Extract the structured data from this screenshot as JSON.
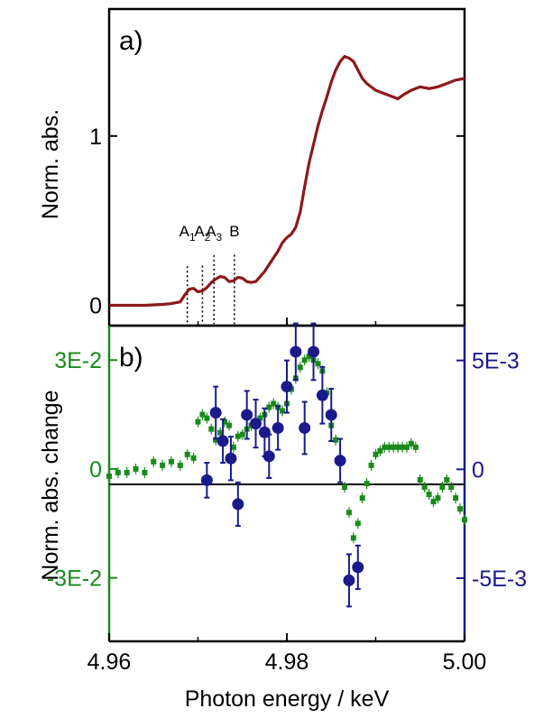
{
  "colors": {
    "xanes": "#8b1a1a",
    "green": "#1a8a1a",
    "blue": "#1a1a8a",
    "axis": "#000000"
  },
  "x_axis": {
    "label": "Photon energy / keV",
    "ticks": [
      "4.96",
      "4.98",
      "5.00"
    ],
    "range": [
      4.96,
      5.0
    ]
  },
  "chart_data": [
    {
      "panel": "a)",
      "type": "line",
      "ylabel": "Norm. abs.",
      "ylim": [
        -0.12,
        1.75
      ],
      "yticks": [
        {
          "value": 0,
          "label": "0"
        },
        {
          "value": 1,
          "label": "1"
        }
      ],
      "xlim": [
        4.96,
        5.0
      ],
      "peaks": [
        {
          "label": "A",
          "sub": "1",
          "x": 4.9688
        },
        {
          "label": "A",
          "sub": "2",
          "x": 4.9705
        },
        {
          "label": "A",
          "sub": "3",
          "x": 4.9718
        },
        {
          "label": "B",
          "sub": "",
          "x": 4.9741
        }
      ],
      "series": [
        {
          "color": "#8b1a1a",
          "x": [
            4.96,
            4.964,
            4.966,
            4.967,
            4.968,
            4.9685,
            4.969,
            4.9695,
            4.97,
            4.9705,
            4.971,
            4.9715,
            4.972,
            4.9725,
            4.973,
            4.9735,
            4.974,
            4.9745,
            4.975,
            4.9755,
            4.976,
            4.9765,
            4.977,
            4.9775,
            4.978,
            4.9785,
            4.979,
            4.9795,
            4.98,
            4.9805,
            4.981,
            4.9815,
            4.982,
            4.9825,
            4.983,
            4.9835,
            4.984,
            4.9845,
            4.985,
            4.9855,
            4.986,
            4.9865,
            4.987,
            4.9875,
            4.988,
            4.9885,
            4.989,
            4.99,
            4.991,
            4.992,
            4.9925,
            4.993,
            4.994,
            4.995,
            4.996,
            4.997,
            4.998,
            4.999,
            5.0
          ],
          "y": [
            0.0,
            0.0,
            0.005,
            0.01,
            0.02,
            0.06,
            0.095,
            0.1,
            0.08,
            0.085,
            0.105,
            0.135,
            0.155,
            0.17,
            0.165,
            0.14,
            0.145,
            0.165,
            0.16,
            0.14,
            0.135,
            0.14,
            0.17,
            0.2,
            0.24,
            0.28,
            0.32,
            0.37,
            0.4,
            0.42,
            0.46,
            0.55,
            0.7,
            0.84,
            0.95,
            1.06,
            1.15,
            1.23,
            1.32,
            1.39,
            1.44,
            1.47,
            1.46,
            1.44,
            1.39,
            1.34,
            1.31,
            1.27,
            1.25,
            1.23,
            1.22,
            1.24,
            1.27,
            1.29,
            1.28,
            1.29,
            1.31,
            1.33,
            1.34
          ]
        }
      ]
    },
    {
      "panel": "b)",
      "type": "scatter",
      "ylabel": "Norm. abs. change",
      "xlim": [
        4.96,
        5.0
      ],
      "ylim_left": [
        -0.0475,
        0.0395
      ],
      "yticks_left": [
        {
          "value": 0.03,
          "label": "3E-2"
        },
        {
          "value": 0,
          "label": "0"
        },
        {
          "value": -0.03,
          "label": "-3E-2"
        }
      ],
      "ylim_right": [
        -0.0079,
        0.0066
      ],
      "yticks_right": [
        {
          "value": 0.005,
          "label": "5E-3"
        },
        {
          "value": 0,
          "label": "0"
        },
        {
          "value": -0.005,
          "label": "-5E-3"
        }
      ],
      "series": [
        {
          "name": "",
          "color": "#1a8a1a",
          "axis": "left",
          "x": [
            4.96,
            4.961,
            4.962,
            4.963,
            4.964,
            4.965,
            4.966,
            4.967,
            4.968,
            4.9688,
            4.9695,
            4.97,
            4.9705,
            4.971,
            4.9715,
            4.972,
            4.9725,
            4.973,
            4.9735,
            4.974,
            4.9745,
            4.975,
            4.9755,
            4.976,
            4.9765,
            4.977,
            4.9775,
            4.978,
            4.9785,
            4.979,
            4.9795,
            4.98,
            4.9805,
            4.981,
            4.9815,
            4.982,
            4.9825,
            4.983,
            4.9835,
            4.984,
            4.9845,
            4.985,
            4.9855,
            4.986,
            4.9865,
            4.987,
            4.9875,
            4.988,
            4.9885,
            4.989,
            4.9895,
            4.99,
            4.9905,
            4.991,
            4.9915,
            4.992,
            4.9925,
            4.993,
            4.9935,
            4.994,
            4.9945,
            4.995,
            4.9955,
            4.996,
            4.9965,
            4.997,
            4.9975,
            4.998,
            4.9985,
            4.999,
            4.9995,
            5.0
          ],
          "y": [
            -0.002,
            -0.001,
            -0.001,
            0.0,
            -0.001,
            0.002,
            0.001,
            0.002,
            0.001,
            0.004,
            0.003,
            0.013,
            0.015,
            0.014,
            0.011,
            0.008,
            0.01,
            0.013,
            0.012,
            0.006,
            0.009,
            0.0095,
            0.011,
            0.012,
            0.013,
            0.014,
            0.015,
            0.017,
            0.018,
            0.017,
            0.016,
            0.018,
            0.022,
            0.025,
            0.028,
            0.03,
            0.031,
            0.03,
            0.029,
            0.027,
            0.021,
            0.012,
            0.008,
            0.003,
            -0.005,
            -0.012,
            -0.019,
            -0.015,
            -0.008,
            -0.004,
            0.001,
            0.004,
            0.005,
            0.006,
            0.006,
            0.006,
            0.006,
            0.006,
            0.006,
            0.007,
            0.006,
            -0.003,
            -0.005,
            -0.007,
            -0.009,
            -0.008,
            -0.005,
            -0.003,
            -0.005,
            -0.008,
            -0.011,
            -0.014
          ]
        },
        {
          "name": "",
          "color": "#1a1a8a",
          "axis": "right",
          "x": [
            4.971,
            4.972,
            4.9728,
            4.9737,
            4.9745,
            4.9755,
            4.9765,
            4.9775,
            4.978,
            4.979,
            4.98,
            4.981,
            4.982,
            4.983,
            4.984,
            4.985,
            4.986,
            4.987,
            4.988
          ],
          "y": [
            -0.0005,
            0.0026,
            0.0013,
            0.0005,
            -0.0016,
            0.0025,
            0.0021,
            0.0017,
            0.0006,
            0.0019,
            0.0038,
            0.0054,
            0.0019,
            0.0054,
            0.0034,
            0.0025,
            0.0004,
            -0.0051,
            -0.0045
          ],
          "err": [
            0.0008,
            0.0012,
            0.001,
            0.001,
            0.001,
            0.0011,
            0.0011,
            0.0011,
            0.001,
            0.001,
            0.0012,
            0.0013,
            0.0012,
            0.0013,
            0.0013,
            0.0012,
            0.001,
            0.0012,
            0.001
          ]
        }
      ]
    }
  ]
}
